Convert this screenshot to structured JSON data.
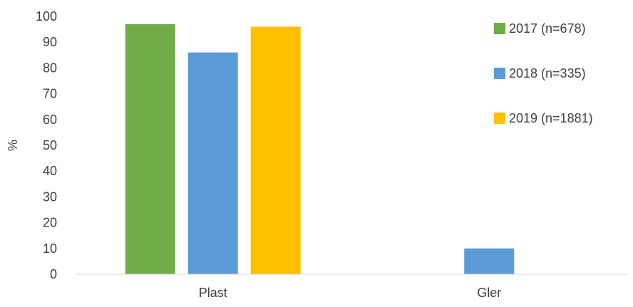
{
  "chart_data": {
    "type": "bar",
    "title": "",
    "xlabel": "",
    "ylabel": "%",
    "ylim": [
      0,
      100
    ],
    "yticks": [
      0,
      10,
      20,
      30,
      40,
      50,
      60,
      70,
      80,
      90,
      100
    ],
    "grid": false,
    "legend_position": "right",
    "categories": [
      "Plast",
      "Gler"
    ],
    "series": [
      {
        "name": "2017 (n=678)",
        "color": "#70AD47",
        "values": [
          97,
          0
        ]
      },
      {
        "name": "2018 (n=335)",
        "color": "#5B9BD5",
        "values": [
          86,
          10
        ]
      },
      {
        "name": "2019 (n=1881)",
        "color": "#FFC000",
        "values": [
          96,
          0
        ]
      }
    ]
  }
}
